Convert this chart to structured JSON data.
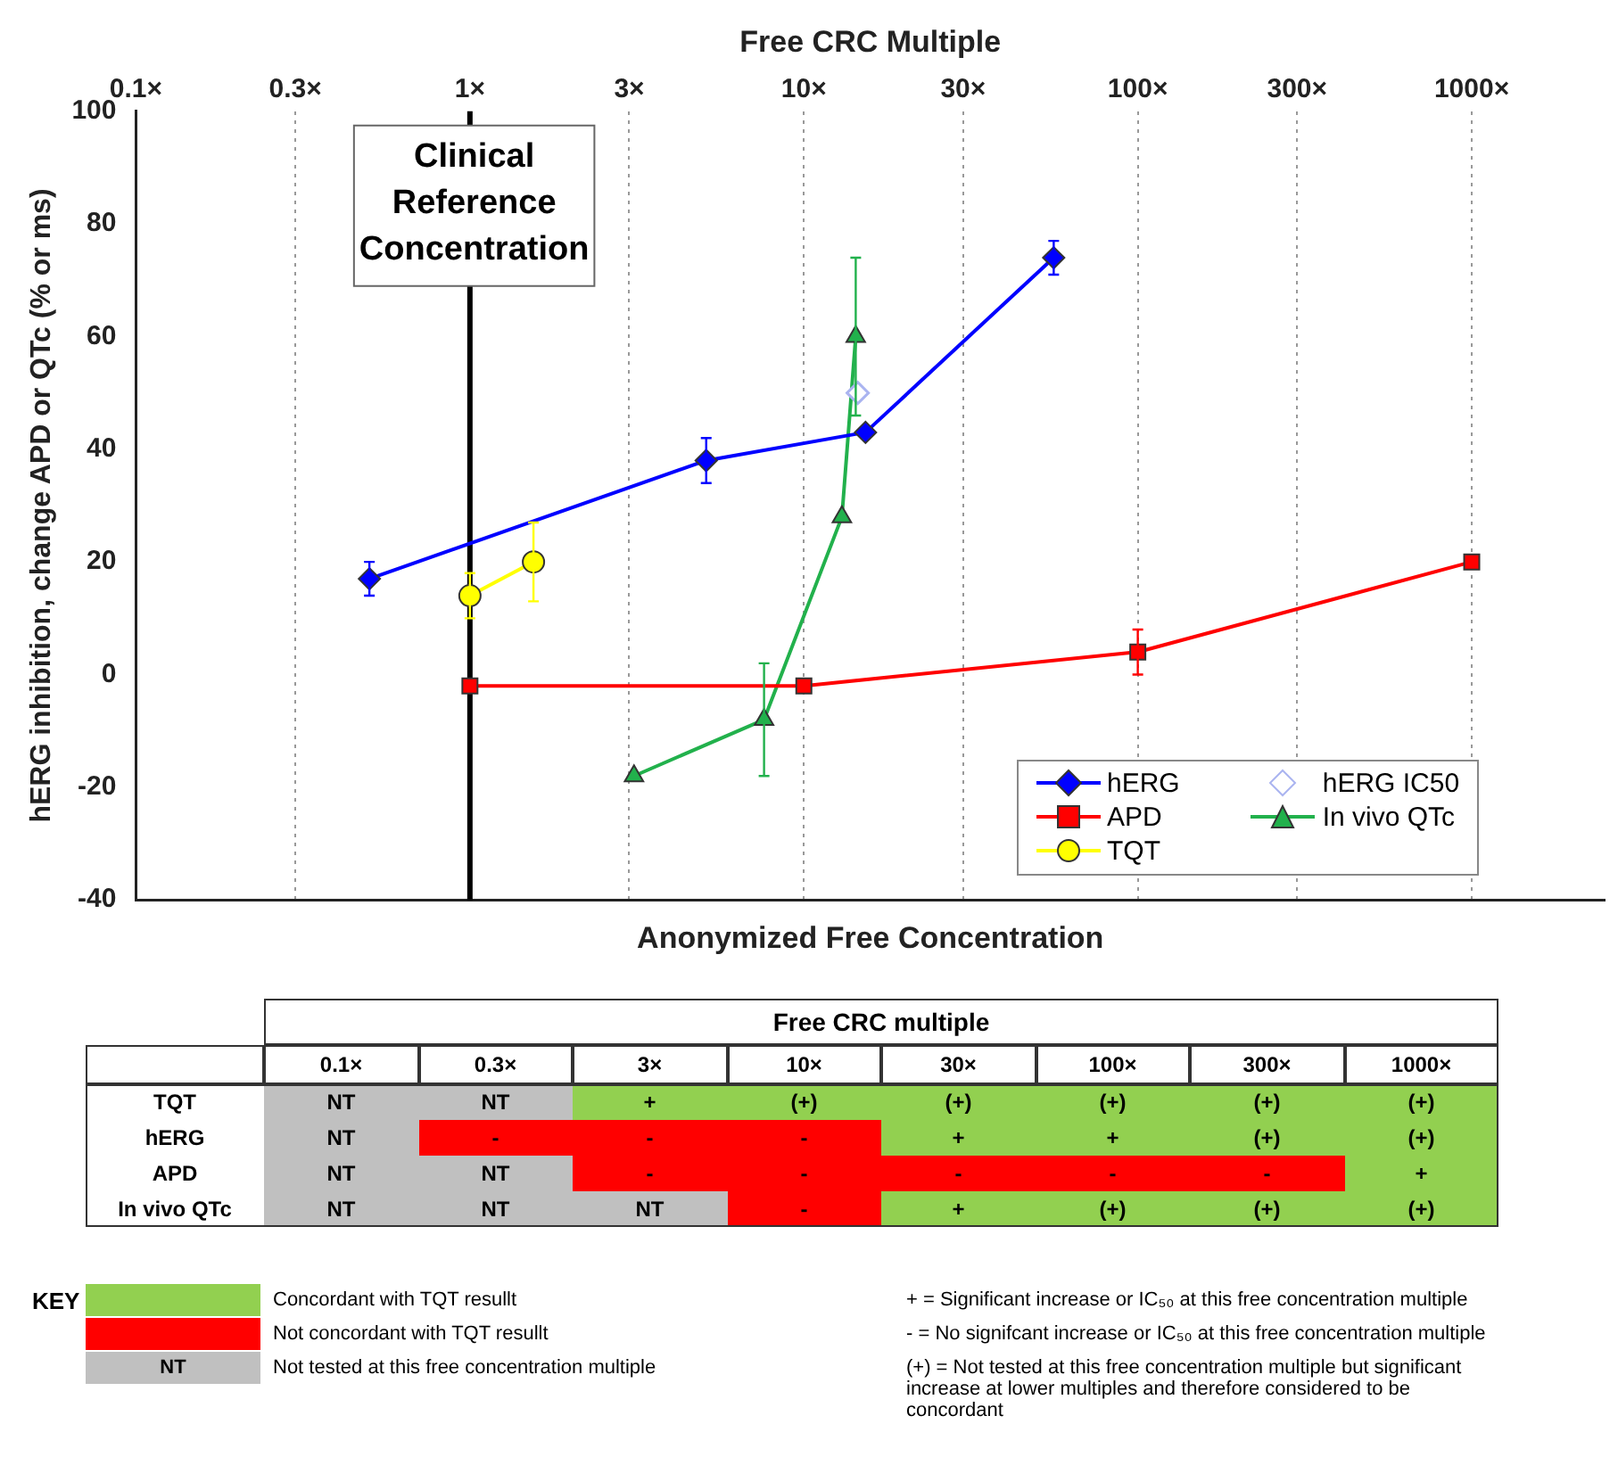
{
  "chart_data": [
    {
      "type": "line",
      "xlabel": "Free CRC Multiple",
      "x2label": "Anonymized Free Concentration",
      "ylabel": "hERG inhibition, change APD or QTc (% or ms)",
      "log": "x",
      "xlim": [
        0.1,
        2500
      ],
      "xticks": [
        {
          "value": 0.1,
          "label": "0.1×"
        },
        {
          "value": 0.3,
          "label": "0.3×"
        },
        {
          "value": 1,
          "label": "1×"
        },
        {
          "value": 3,
          "label": "3×"
        },
        {
          "value": 10,
          "label": "10×"
        },
        {
          "value": 30,
          "label": "30×"
        },
        {
          "value": 100,
          "label": "100×"
        },
        {
          "value": 300,
          "label": "300×"
        },
        {
          "value": 1000,
          "label": "1000×"
        }
      ],
      "ylim": [
        -40,
        100
      ],
      "yticks": [
        -40,
        -20,
        0,
        20,
        40,
        60,
        80,
        100
      ],
      "grid": "x",
      "legend": "bottom right",
      "ref_lines": [
        {
          "axis": "x",
          "value": 1,
          "label": "Clinical Reference Concentration",
          "color": "#000000"
        }
      ],
      "series": [
        {
          "name": "hERG",
          "type": "line",
          "color": "#0000ff",
          "marker": "diamond",
          "x": [
            0.5,
            5.1,
            15.3,
            56
          ],
          "values": [
            17,
            38,
            43,
            74
          ],
          "errors": [
            3,
            4,
            null,
            3
          ]
        },
        {
          "name": "hERG IC50",
          "type": "scatter",
          "color": "#aab4f0",
          "marker": "diamond",
          "x": [
            14.5
          ],
          "values": [
            50
          ]
        },
        {
          "name": "APD",
          "type": "line",
          "color": "#ff0000",
          "marker": "square",
          "x": [
            1,
            10,
            100,
            1000
          ],
          "values": [
            -2,
            -2,
            4,
            20
          ],
          "errors": [
            null,
            null,
            4,
            null
          ]
        },
        {
          "name": "In vivo QTc",
          "type": "line",
          "color": "#22b14c",
          "marker": "triangle",
          "x": [
            3.1,
            7.6,
            13,
            14.3
          ],
          "values": [
            -18,
            -8,
            28,
            60
          ],
          "errors": [
            null,
            10,
            null,
            14
          ]
        },
        {
          "name": "TQT",
          "type": "line",
          "color": "#ffff00",
          "marker": "circle",
          "x": [
            1,
            1.55
          ],
          "values": [
            14,
            20
          ],
          "errors": [
            4,
            7
          ]
        }
      ]
    },
    {
      "type": "other",
      "title": "Free CRC multiple",
      "legend_title": "KEY",
      "categories": [
        "0.1×",
        "0.3×",
        "3×",
        "10×",
        "30×",
        "100×",
        "300×",
        "1000×"
      ],
      "y_categories": [
        "TQT",
        "hERG",
        "APD",
        "In vivo QTc"
      ],
      "colors": [
        [
          "#c0c0c0",
          "#c0c0c0",
          "#92d050",
          "#92d050",
          "#92d050",
          "#92d050",
          "#92d050",
          "#92d050"
        ],
        [
          "#c0c0c0",
          "#ff0000",
          "#ff0000",
          "#ff0000",
          "#92d050",
          "#92d050",
          "#92d050",
          "#92d050"
        ],
        [
          "#c0c0c0",
          "#c0c0c0",
          "#ff0000",
          "#ff0000",
          "#ff0000",
          "#ff0000",
          "#ff0000",
          "#92d050"
        ],
        [
          "#c0c0c0",
          "#c0c0c0",
          "#c0c0c0",
          "#ff0000",
          "#92d050",
          "#92d050",
          "#92d050",
          "#92d050"
        ]
      ],
      "cell_labels": [
        [
          "NT",
          "NT",
          "+",
          "(+)",
          "(+)",
          "(+)",
          "(+)",
          "(+)"
        ],
        [
          "NT",
          "-",
          "-",
          "-",
          "+",
          "+",
          "(+)",
          "(+)"
        ],
        [
          "NT",
          "NT",
          "-",
          "-",
          "-",
          "-",
          "-",
          "+"
        ],
        [
          "NT",
          "NT",
          "NT",
          "-",
          "+",
          "(+)",
          "(+)",
          "(+)"
        ]
      ],
      "annotations": [
        "Concordant with TQT resullt",
        "Not concordant with TQT resullt",
        "NT",
        "Not tested at this free concentration multiple",
        "+  =  Significant increase or IC₅₀ at this free concentration multiple",
        "-  =  No signifcant increase or IC₅₀ at this free concentration multiple",
        "(+)  =  Not tested at this free concentration multiple but significant increase at lower multiples and therefore considered to be concordant"
      ]
    }
  ]
}
